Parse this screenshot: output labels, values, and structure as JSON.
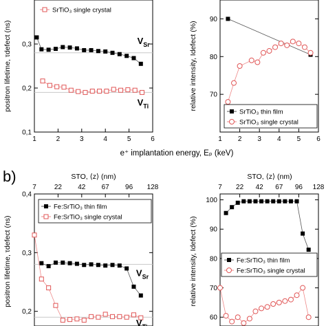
{
  "panel_labels": {
    "b": "b)"
  },
  "shared_xlabel": "e⁺ implantation energy, Eₚ (keV)",
  "chart_data": [
    {
      "id": "a-left",
      "type": "scatter",
      "ylabel": "positron lifetime, τdefect (ns)",
      "ylim": [
        0.1,
        0.4
      ],
      "yticks": [
        "0,1",
        "0,2",
        "0,3"
      ],
      "xlim": [
        1,
        6
      ],
      "xticks": [
        "1",
        "2",
        "3",
        "4",
        "5",
        "6"
      ],
      "reference_lines": [
        0.28,
        0.19
      ],
      "annotations": [
        {
          "text": "VSr",
          "base": "V",
          "sub": "Sr",
          "color": "#000000",
          "x": 5.35,
          "y": 0.3
        },
        {
          "text": "VTi",
          "base": "V",
          "sub": "Ti",
          "color": "#e02020",
          "x": 5.35,
          "y": 0.16
        }
      ],
      "legend": {
        "placement": "top-left",
        "entries": [
          "SrTiO₃ single crystal"
        ]
      },
      "series": [
        {
          "name": "SrTiO₃ thin film",
          "marker": "square-filled",
          "color": "#000000",
          "x": [
            1.1,
            1.3,
            1.6,
            1.9,
            2.2,
            2.5,
            2.8,
            3.1,
            3.4,
            3.7,
            4.0,
            4.3,
            4.6,
            4.9,
            5.2,
            5.5
          ],
          "y": [
            0.315,
            0.288,
            0.287,
            0.289,
            0.293,
            0.292,
            0.29,
            0.286,
            0.286,
            0.284,
            0.283,
            0.28,
            0.277,
            0.273,
            0.268,
            0.255
          ]
        },
        {
          "name": "SrTiO₃ single crystal",
          "marker": "square-open",
          "color": "#e05555",
          "x": [
            1.35,
            1.65,
            1.95,
            2.25,
            2.55,
            2.85,
            3.15,
            3.45,
            3.75,
            4.05,
            4.35,
            4.65,
            4.95,
            5.25,
            5.55
          ],
          "y": [
            0.216,
            0.206,
            0.203,
            0.202,
            0.195,
            0.192,
            0.19,
            0.193,
            0.193,
            0.193,
            0.197,
            0.195,
            0.196,
            0.195,
            0.19
          ]
        }
      ]
    },
    {
      "id": "a-right",
      "type": "scatter",
      "ylabel": "relative intensity, Idefect (%)",
      "ylim": [
        60,
        95
      ],
      "yticks": [
        "70",
        "80",
        "90"
      ],
      "xlim": [
        1,
        6
      ],
      "xticks": [
        "1",
        "2",
        "3",
        "4",
        "5",
        "6"
      ],
      "legend": {
        "placement": "bottom-right",
        "entries": [
          "SrTiO₃ thin film",
          "SrTiO₃ single crystal"
        ]
      },
      "series": [
        {
          "name": "SrTiO₃ thin film",
          "marker": "square-filled",
          "color": "#000000",
          "x": [
            1.4,
            5.6
          ],
          "y": [
            90,
            80.5
          ]
        },
        {
          "name": "SrTiO₃ single crystal",
          "marker": "circle-open",
          "color": "#e05555",
          "x": [
            1.4,
            1.7,
            2.0,
            2.6,
            2.9,
            3.2,
            3.5,
            3.8,
            4.1,
            4.4,
            4.7,
            5.0,
            5.3,
            5.6
          ],
          "y": [
            68,
            73,
            77.5,
            79,
            78.5,
            81,
            81.5,
            82.5,
            83.5,
            83,
            84,
            83.5,
            82.5,
            81
          ]
        }
      ]
    },
    {
      "id": "b-left",
      "type": "scatter",
      "ylabel": "positron lifetime, τdefect (ns)",
      "ylim": [
        0.175,
        0.4
      ],
      "yticks": [
        "0,2",
        "0,3",
        "0,4"
      ],
      "top_axis_label": "STO, ⟨z⟩ (nm)",
      "top_ticks": [
        "7",
        "22",
        "42",
        "67",
        "96",
        "128"
      ],
      "annotations": [
        {
          "text": "VSr",
          "base": "V",
          "sub": "Sr",
          "color": "#000000",
          "x": 5.3,
          "y": 0.26
        },
        {
          "text": "VTi",
          "base": "V",
          "sub": "Ti",
          "color": "#e02020",
          "x": 5.3,
          "y": 0.175
        }
      ],
      "reference_lines": [
        0.28,
        0.19
      ],
      "legend": {
        "placement": "top-right",
        "entries": [
          "Fe:SrTiO₃ thin film",
          "Fe:SrTiO₃ single crystal"
        ]
      },
      "series": [
        {
          "name": "Fe:SrTiO₃ thin film",
          "marker": "square-filled",
          "color": "#000000",
          "x": [
            1.3,
            1.6,
            1.9,
            2.2,
            2.5,
            2.8,
            3.1,
            3.4,
            3.7,
            4.0,
            4.3,
            4.6,
            4.9,
            5.2,
            5.5
          ],
          "y": [
            0.282,
            0.277,
            0.283,
            0.283,
            0.282,
            0.281,
            0.279,
            0.28,
            0.279,
            0.278,
            0.279,
            0.278,
            0.273,
            0.242,
            0.227
          ]
        },
        {
          "name": "Fe:SrTiO₃ single crystal",
          "marker": "square-open",
          "color": "#e05555",
          "x": [
            1.0,
            1.3,
            1.6,
            1.9,
            2.2,
            2.5,
            2.8,
            3.1,
            3.4,
            3.7,
            4.0,
            4.3,
            4.6,
            4.9,
            5.2,
            5.5
          ],
          "y": [
            0.33,
            0.255,
            0.24,
            0.21,
            0.185,
            0.186,
            0.187,
            0.185,
            0.191,
            0.19,
            0.195,
            0.191,
            0.191,
            0.19,
            0.194,
            0.189
          ]
        }
      ]
    },
    {
      "id": "b-right",
      "type": "scatter",
      "ylabel": "relative intensity, Idefect (%)",
      "ylim": [
        57,
        102
      ],
      "yticks": [
        "60",
        "70",
        "80",
        "90",
        "100"
      ],
      "top_axis_label": "STO, ⟨z⟩ (nm)",
      "top_ticks": [
        "7",
        "22",
        "42",
        "67",
        "96",
        "128"
      ],
      "legend": {
        "placement": "middle-right",
        "entries": [
          "Fe:SrTiO₃ thin film",
          "Fe:SrTiO₃ single crystal"
        ]
      },
      "series": [
        {
          "name": "Fe:SrTiO₃ thin film",
          "marker": "square-filled",
          "color": "#000000",
          "x": [
            1.3,
            1.6,
            1.9,
            2.2,
            2.5,
            2.8,
            3.1,
            3.4,
            3.7,
            4.0,
            4.3,
            4.6,
            4.9,
            5.2,
            5.5
          ],
          "y": [
            95.5,
            97.5,
            99,
            99.5,
            99.5,
            99.5,
            99.5,
            99.5,
            99.5,
            99.5,
            99.5,
            99.5,
            99.5,
            88.5,
            83
          ]
        },
        {
          "name": "Fe:SrTiO₃ single crystal",
          "marker": "circle-open",
          "color": "#e05555",
          "x": [
            1.0,
            1.3,
            1.6,
            1.9,
            2.2,
            2.5,
            2.8,
            3.1,
            3.4,
            3.7,
            4.0,
            4.3,
            4.6,
            4.9,
            5.2,
            5.5
          ],
          "y": [
            70,
            60.5,
            58.5,
            60,
            58,
            59.5,
            62,
            63,
            63.5,
            64.5,
            65,
            65.5,
            66,
            67.5,
            70,
            60
          ]
        }
      ]
    }
  ]
}
